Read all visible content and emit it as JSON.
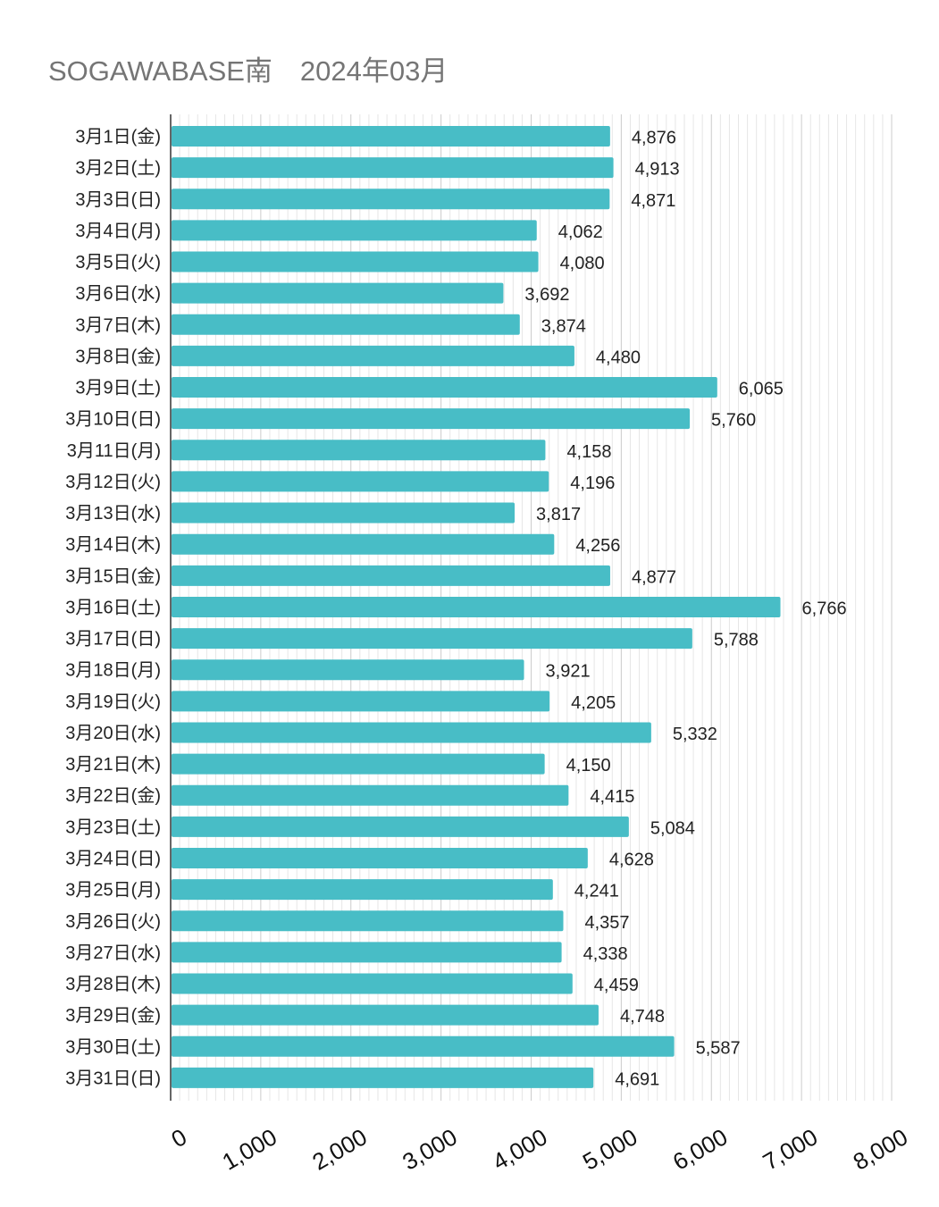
{
  "chart_data": {
    "type": "bar",
    "orientation": "horizontal",
    "title": "SOGAWABASE南　2024年03月",
    "xlabel": "",
    "ylabel": "",
    "xlim": [
      0,
      8000
    ],
    "grid": true,
    "legend": "none",
    "bar_color": "#48BDC6",
    "categories": [
      "3月1日(金)",
      "3月2日(土)",
      "3月3日(日)",
      "3月4日(月)",
      "3月5日(火)",
      "3月6日(水)",
      "3月7日(木)",
      "3月8日(金)",
      "3月9日(土)",
      "3月10日(日)",
      "3月11日(月)",
      "3月12日(火)",
      "3月13日(水)",
      "3月14日(木)",
      "3月15日(金)",
      "3月16日(土)",
      "3月17日(日)",
      "3月18日(月)",
      "3月19日(火)",
      "3月20日(水)",
      "3月21日(木)",
      "3月22日(金)",
      "3月23日(土)",
      "3月24日(日)",
      "3月25日(月)",
      "3月26日(火)",
      "3月27日(水)",
      "3月28日(木)",
      "3月29日(金)",
      "3月30日(土)",
      "3月31日(日)"
    ],
    "values": [
      4876,
      4913,
      4871,
      4062,
      4080,
      3692,
      3874,
      4480,
      6065,
      5760,
      4158,
      4196,
      3817,
      4256,
      4877,
      6766,
      5788,
      3921,
      4205,
      5332,
      4150,
      4415,
      5084,
      4628,
      4241,
      4357,
      4338,
      4459,
      4748,
      5587,
      4691
    ],
    "value_labels": [
      "4,876",
      "4,913",
      "4,871",
      "4,062",
      "4,080",
      "3,692",
      "3,874",
      "4,480",
      "6,065",
      "5,760",
      "4,158",
      "4,196",
      "3,817",
      "4,256",
      "4,877",
      "6,766",
      "5,788",
      "3,921",
      "4,205",
      "5,332",
      "4,150",
      "4,415",
      "5,084",
      "4,628",
      "4,241",
      "4,357",
      "4,338",
      "4,459",
      "4,748",
      "5,587",
      "4,691"
    ],
    "x_ticks": [
      0,
      1000,
      2000,
      3000,
      4000,
      5000,
      6000,
      7000,
      8000
    ],
    "x_tick_labels": [
      "0",
      "1,000",
      "2,000",
      "3,000",
      "4,000",
      "5,000",
      "6,000",
      "7,000",
      "8,000"
    ]
  }
}
